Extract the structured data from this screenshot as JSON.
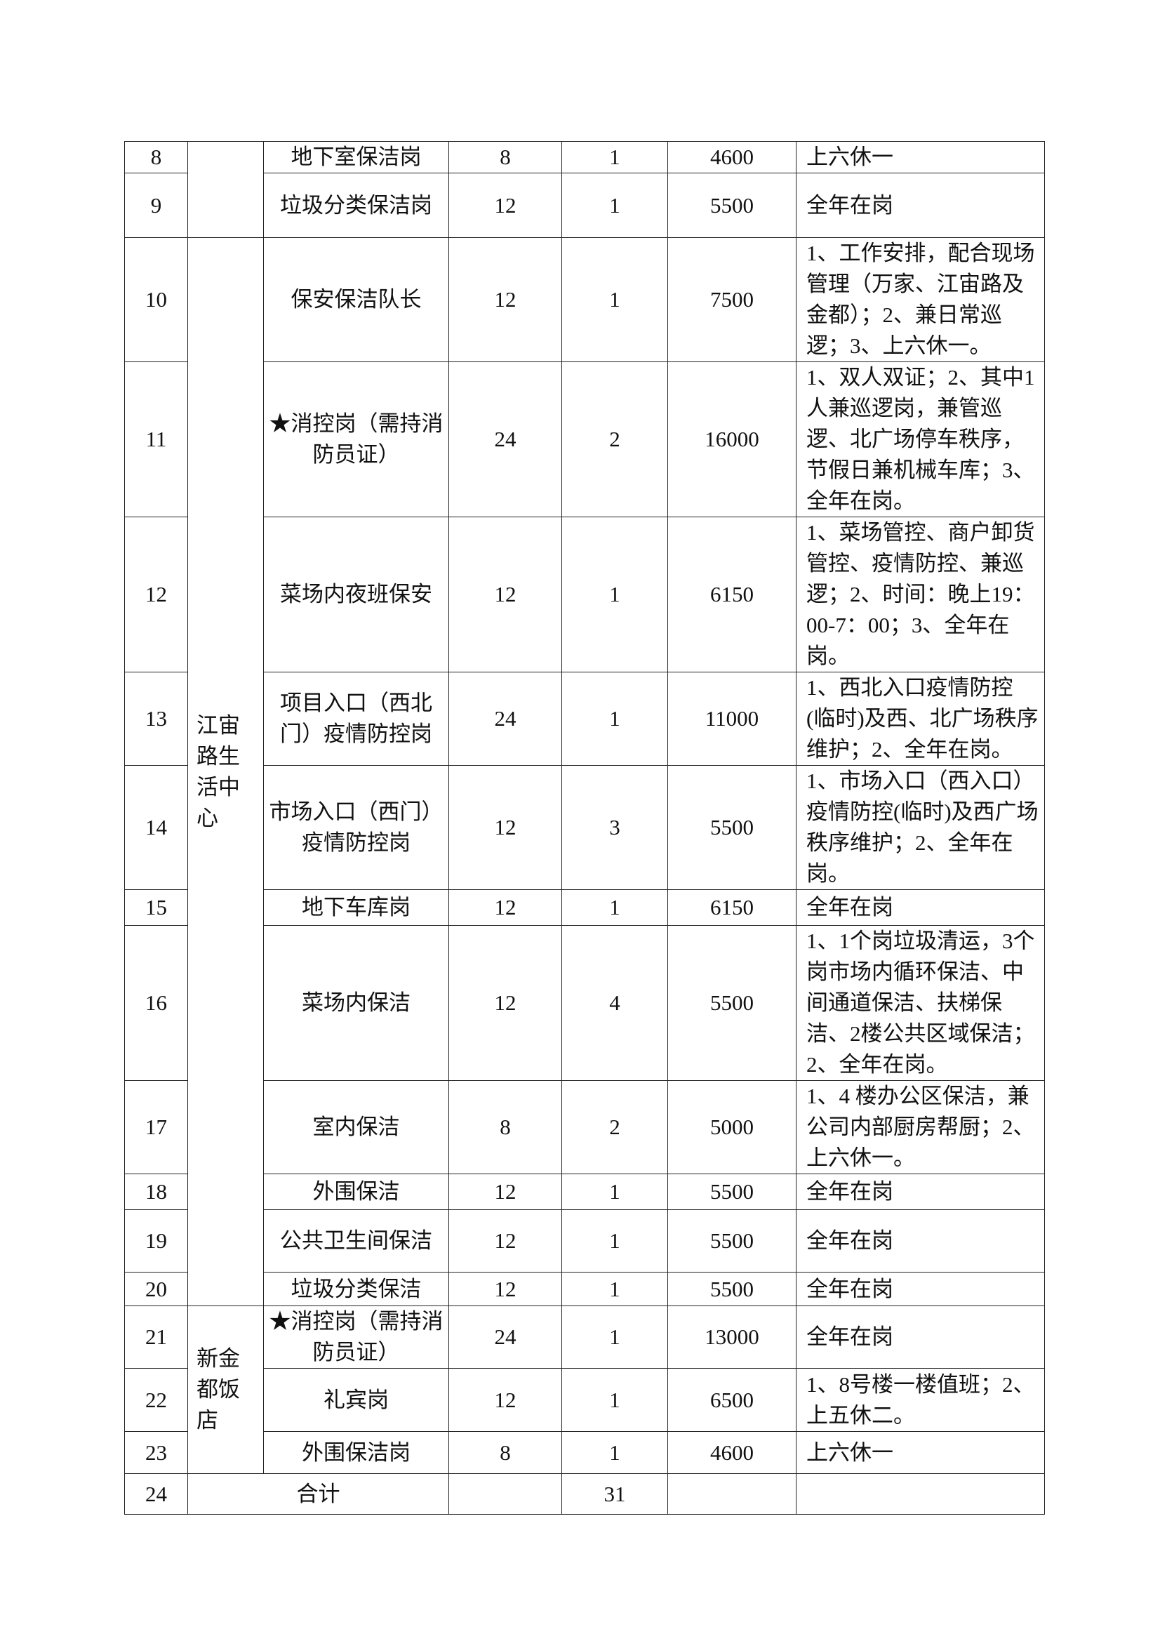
{
  "table": {
    "rows": [
      {
        "no": "8",
        "post": "地下室保洁岗",
        "hours": "8",
        "count": "1",
        "salary": "4600",
        "note": "上六休一"
      },
      {
        "no": "9",
        "post": "垃圾分类保洁岗",
        "hours": "12",
        "count": "1",
        "salary": "5500",
        "note": "全年在岗"
      },
      {
        "no": "10",
        "post": "保安保洁队长",
        "hours": "12",
        "count": "1",
        "salary": "7500",
        "note": "1、工作安排，配合现场管理（万家、江宙路及金都）；2、兼日常巡逻；3、上六休一。"
      },
      {
        "no": "11",
        "post": "★消控岗（需持消防员证）",
        "hours": "24",
        "count": "2",
        "salary": "16000",
        "note": "1、双人双证；2、其中1人兼巡逻岗，兼管巡逻、北广场停车秩序，节假日兼机械车库；3、全年在岗。"
      },
      {
        "no": "12",
        "post": "菜场内夜班保安",
        "hours": "12",
        "count": "1",
        "salary": "6150",
        "note": "1、菜场管控、商户卸货管控、疫情防控、兼巡逻；2、时间：晚上19：00-7：00；3、全年在岗。"
      },
      {
        "no": "13",
        "post": "项目入口（西北门）疫情防控岗",
        "hours": "24",
        "count": "1",
        "salary": "11000",
        "note": "1、西北入口疫情防控(临时)及西、北广场秩序维护；2、全年在岗。"
      },
      {
        "no": "14",
        "post": "市场入口（西门）疫情防控岗",
        "hours": "12",
        "count": "3",
        "salary": "5500",
        "note": "1、市场入口（西入口）疫情防控(临时)及西广场秩序维护；2、全年在岗。"
      },
      {
        "no": "15",
        "post": "地下车库岗",
        "hours": "12",
        "count": "1",
        "salary": "6150",
        "note": "全年在岗"
      },
      {
        "no": "16",
        "post": "菜场内保洁",
        "hours": "12",
        "count": "4",
        "salary": "5500",
        "note": "1、1个岗垃圾清运，3个岗市场内循环保洁、中间通道保洁、扶梯保洁、2楼公共区域保洁；2、全年在岗。"
      },
      {
        "no": "17",
        "post": "室内保洁",
        "hours": "8",
        "count": "2",
        "salary": "5000",
        "note": "1、4 楼办公区保洁，兼公司内部厨房帮厨；2、上六休一。"
      },
      {
        "no": "18",
        "post": "外围保洁",
        "hours": "12",
        "count": "1",
        "salary": "5500",
        "note": "全年在岗"
      },
      {
        "no": "19",
        "post": "公共卫生间保洁",
        "hours": "12",
        "count": "1",
        "salary": "5500",
        "note": "全年在岗"
      },
      {
        "no": "20",
        "post": "垃圾分类保洁",
        "hours": "12",
        "count": "1",
        "salary": "5500",
        "note": "全年在岗"
      },
      {
        "no": "21",
        "post": "★消控岗（需持消防员证）",
        "hours": "24",
        "count": "1",
        "salary": "13000",
        "note": "全年在岗"
      },
      {
        "no": "22",
        "post": "礼宾岗",
        "hours": "12",
        "count": "1",
        "salary": "6500",
        "note": "1、8号楼一楼值班；2、上五休二。"
      },
      {
        "no": "23",
        "post": "外围保洁岗",
        "hours": "8",
        "count": "1",
        "salary": "4600",
        "note": "上六休一"
      }
    ],
    "groups": [
      "江宙路生活中心",
      "新金都饭店"
    ],
    "total": {
      "no": "24",
      "label": "合计",
      "count": "31"
    }
  }
}
